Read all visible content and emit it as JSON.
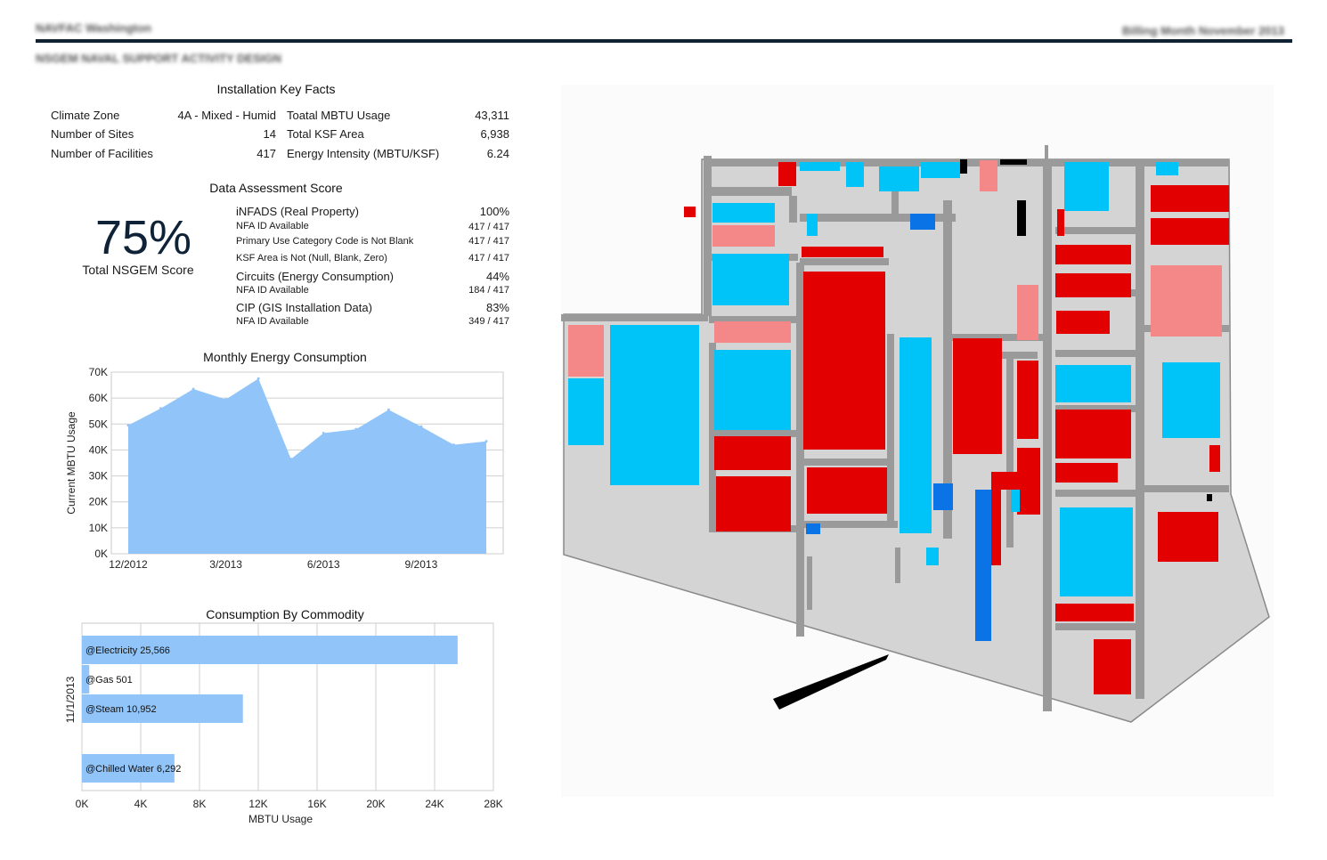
{
  "header": {
    "left_title": "NAVFAC Washington",
    "right_title": "Billing Month November 2013",
    "subtitle": "NSGEM NAVAL SUPPORT ACTIVITY DESIGN"
  },
  "key_facts": {
    "title": "Installation Key Facts",
    "left": [
      {
        "label": "Climate Zone",
        "value": "4A - Mixed - Humid"
      },
      {
        "label": "Number of Sites",
        "value": "14"
      },
      {
        "label": "Number of Facilities",
        "value": "417"
      }
    ],
    "right": [
      {
        "label": "Toatal MBTU Usage",
        "value": "43,311"
      },
      {
        "label": "Total KSF Area",
        "value": "6,938"
      },
      {
        "label": "Energy Intensity (MBTU/KSF)",
        "value": "6.24"
      }
    ]
  },
  "assessment": {
    "title": "Data Assessment Score",
    "score": "75%",
    "score_label": "Total NSGEM Score",
    "rows": [
      {
        "label": "iNFADS (Real Property)",
        "value": "100%",
        "kind": "main"
      },
      {
        "label": "NFA ID Available",
        "value": "417 / 417",
        "kind": "sub"
      },
      {
        "label": "Primary Use Category Code is Not Blank",
        "value": "417 / 417",
        "kind": "sub"
      },
      {
        "label": "KSF Area is Not (Null, Blank, Zero)",
        "value": "417 / 417",
        "kind": "sub"
      },
      {
        "label": "Circuits (Energy Consumption)",
        "value": "44%",
        "kind": "main"
      },
      {
        "label": "NFA ID Available",
        "value": "184 / 417",
        "kind": "sub"
      },
      {
        "label": "CIP (GIS Installation Data)",
        "value": "83%",
        "kind": "main"
      },
      {
        "label": "NFA ID Available",
        "value": "349 / 417",
        "kind": "sub"
      }
    ]
  },
  "chart_data": [
    {
      "type": "area",
      "title": "Monthly Energy Consumption",
      "ylabel": "Current MBTU Usage",
      "x": [
        "2012-12",
        "2013-01",
        "2013-02",
        "2013-03",
        "2013-04",
        "2013-05",
        "2013-06",
        "2013-07",
        "2013-08",
        "2013-09",
        "2013-10",
        "2013-11"
      ],
      "values": [
        49500,
        56000,
        63500,
        59500,
        67500,
        36500,
        46500,
        48000,
        55500,
        49000,
        42000,
        43311
      ],
      "xticks": [
        "12/2012",
        "3/2013",
        "6/2013",
        "9/2013"
      ],
      "yticks": [
        "0K",
        "10K",
        "20K",
        "30K",
        "40K",
        "50K",
        "60K",
        "70K"
      ],
      "ylim": [
        0,
        70000
      ],
      "grid": true,
      "color": "#91c4f8"
    },
    {
      "type": "bar",
      "orientation": "horizontal",
      "title": "Consumption By Commodity",
      "xlabel": "MBTU Usage",
      "ylabel": "11/1/2013",
      "categories": [
        "@Electricity",
        "@Gas",
        "@Steam",
        "@Chilled Water"
      ],
      "values": [
        25566,
        501,
        10952,
        6292
      ],
      "value_labels": [
        "@Electricity 25,566",
        "@Gas 501",
        "@Steam 10,952",
        "@Chilled Water 6,292"
      ],
      "xticks": [
        "0K",
        "4K",
        "8K",
        "12K",
        "16K",
        "20K",
        "24K",
        "28K"
      ],
      "xlim": [
        0,
        28000
      ],
      "grid": true,
      "color": "#91c4f8"
    }
  ],
  "map": {
    "colors": {
      "ground": "#d4d4d4",
      "road": "#9a9a9a",
      "red": "#e20000",
      "pink": "#f48888",
      "cyan": "#00c3f7",
      "blue": "#0a73e6",
      "black": "#000000"
    }
  }
}
